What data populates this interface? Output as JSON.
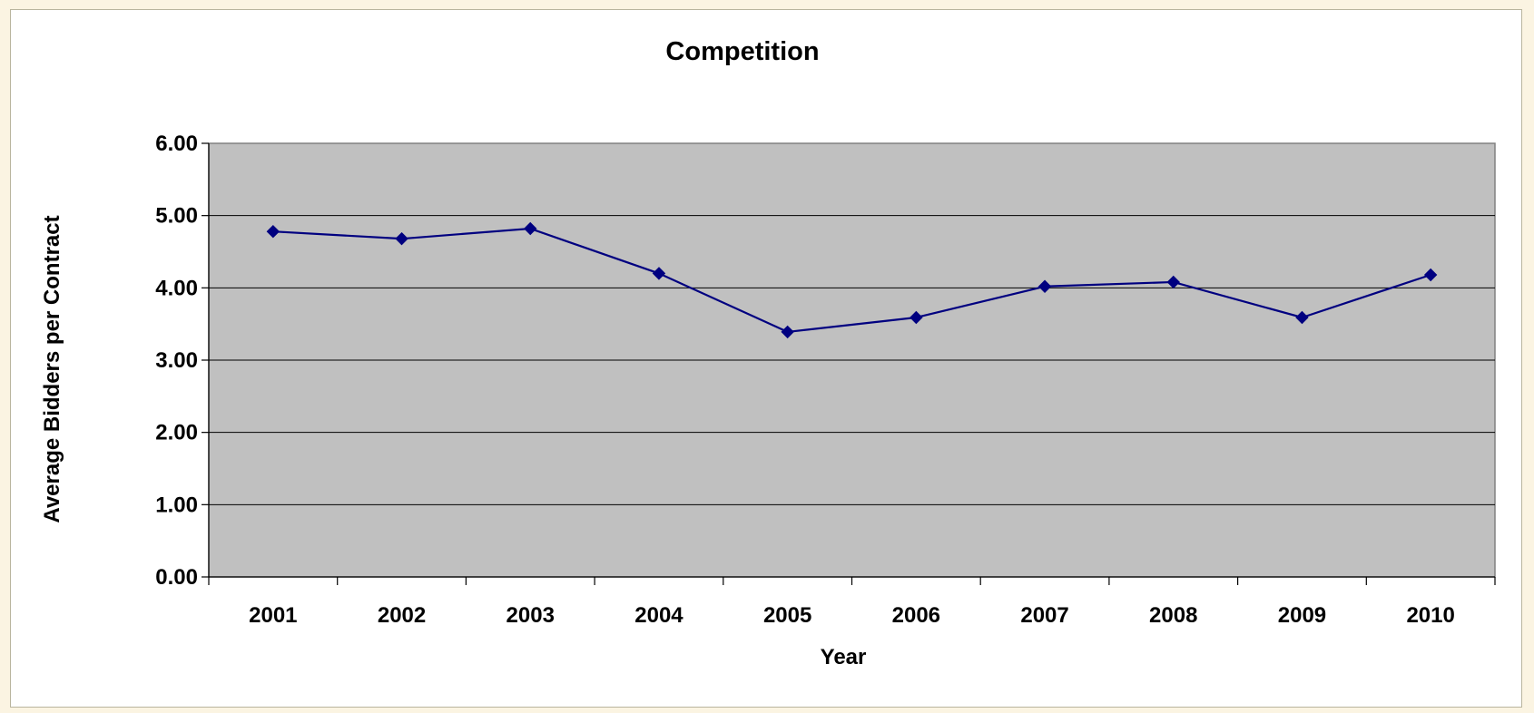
{
  "chart_data": {
    "type": "line",
    "title": "Competition",
    "xlabel": "Year",
    "ylabel": "Average Bidders per Contract",
    "categories": [
      "2001",
      "2002",
      "2003",
      "2004",
      "2005",
      "2006",
      "2007",
      "2008",
      "2009",
      "2010"
    ],
    "series": [
      {
        "values": [
          4.78,
          4.68,
          4.82,
          4.2,
          3.39,
          3.59,
          4.02,
          4.08,
          3.59,
          4.18
        ]
      }
    ],
    "ylim": [
      0,
      6
    ],
    "yticks": [
      "0.00",
      "1.00",
      "2.00",
      "3.00",
      "4.00",
      "5.00",
      "6.00"
    ],
    "grid": true,
    "legend": "none",
    "colors": {
      "plot_background": "#c0c0c0",
      "line": "#000080",
      "marker": "#000080",
      "gridline": "#000000",
      "page_background": "#fbf4e2"
    }
  }
}
